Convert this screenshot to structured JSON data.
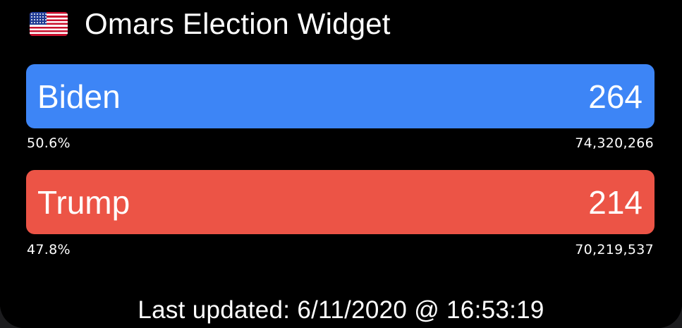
{
  "header": {
    "flag_icon": "us-flag-icon",
    "title": "Omars Election Widget"
  },
  "candidates": [
    {
      "name": "Biden",
      "electoral_votes": "264",
      "percent": "50.6%",
      "popular_votes": "74,320,266",
      "color": "#3d85f6"
    },
    {
      "name": "Trump",
      "electoral_votes": "214",
      "percent": "47.8%",
      "popular_votes": "70,219,537",
      "color": "#ec5446"
    }
  ],
  "footer": {
    "last_updated": "Last updated: 6/11/2020 @ 16:53:19"
  }
}
